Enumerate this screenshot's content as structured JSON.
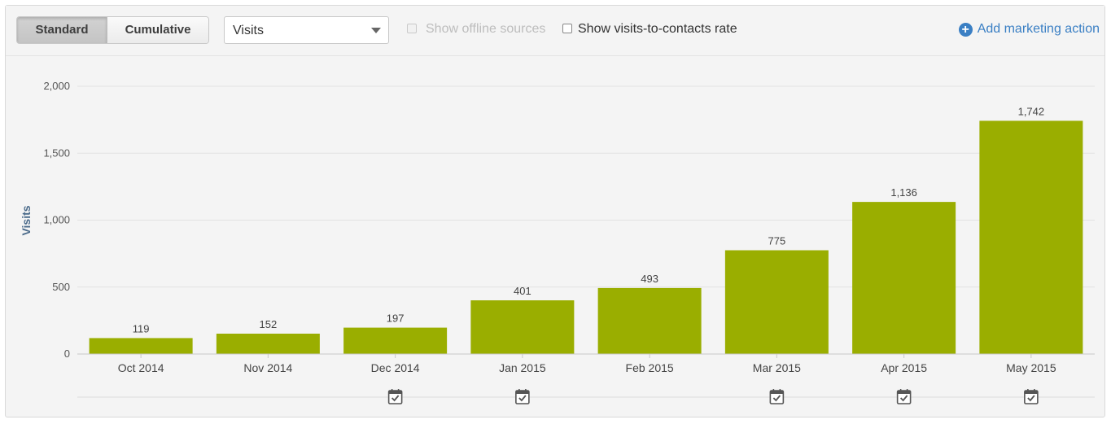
{
  "toolbar": {
    "tabs": [
      {
        "label": "Standard",
        "active": true
      },
      {
        "label": "Cumulative",
        "active": false
      }
    ],
    "metric_select": {
      "value": "Visits"
    },
    "offline_sources": {
      "label": "Show offline sources",
      "checked": false,
      "disabled": true
    },
    "contacts_rate": {
      "label": "Show visits-to-contacts rate",
      "checked": false,
      "disabled": false
    },
    "add_action": {
      "label": "Add marketing action",
      "icon": "plus-circle-icon"
    }
  },
  "colors": {
    "bar": "#9aae00",
    "link": "#3a7fc4",
    "ylabel": "#4a6a8a"
  },
  "chart_data": {
    "type": "bar",
    "categories": [
      "Oct 2014",
      "Nov 2014",
      "Dec 2014",
      "Jan 2015",
      "Feb 2015",
      "Mar 2015",
      "Apr 2015",
      "May 2015"
    ],
    "values": [
      119,
      152,
      197,
      401,
      493,
      775,
      1136,
      1742
    ],
    "value_labels": [
      "119",
      "152",
      "197",
      "401",
      "493",
      "775",
      "1,136",
      "1,742"
    ],
    "ylabel": "Visits",
    "ylim": [
      0,
      2000
    ],
    "yticks": [
      0,
      500,
      1000,
      1500,
      2000
    ],
    "ytick_labels": [
      "0",
      "500",
      "1,000",
      "1,500",
      "2,000"
    ],
    "grid": true,
    "marketing_action_months": [
      "Dec 2014",
      "Jan 2015",
      "Mar 2015",
      "Apr 2015",
      "May 2015"
    ]
  }
}
